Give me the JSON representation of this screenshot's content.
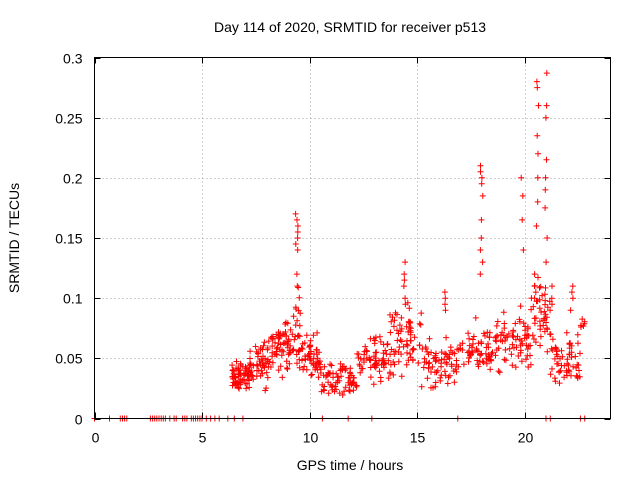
{
  "chart_data": {
    "type": "scatter",
    "title": "Day 114 of 2020, SRMTID for receiver p513",
    "xlabel": "GPS time / hours",
    "ylabel": "SRMTID / TECUs",
    "xlim": [
      0,
      24
    ],
    "ylim": [
      0,
      0.3
    ],
    "xticks": [
      0,
      5,
      10,
      15,
      20
    ],
    "yticks": [
      0,
      0.05,
      0.1,
      0.15,
      0.2,
      0.25,
      0.3
    ],
    "xtick_labels": [
      "0",
      "5",
      "10",
      "15",
      "20"
    ],
    "ytick_labels": [
      "0",
      "0.05",
      "0.1",
      "0.15",
      "0.2",
      "0.25",
      "0.3"
    ],
    "grid": true,
    "marker": "+",
    "series_color": "#ff0000",
    "zero_points_x": [
      0.0,
      0.7,
      1.2,
      1.3,
      1.4,
      1.5,
      2.6,
      2.7,
      2.8,
      2.9,
      3.0,
      3.1,
      3.2,
      3.3,
      3.5,
      3.7,
      3.8,
      4.1,
      4.2,
      4.3,
      4.5,
      4.6,
      4.7,
      4.8,
      4.9,
      5.0,
      5.2,
      5.4,
      5.6,
      5.8,
      6.2,
      6.5,
      6.9,
      10.6,
      11.8,
      12.9,
      16.9,
      21.0,
      21.2,
      22.6,
      22.8
    ],
    "segments": [
      {
        "x0": 6.4,
        "x1": 7.2,
        "base": 0.035,
        "spread": 0.012,
        "n": 60
      },
      {
        "x0": 7.2,
        "x1": 8.2,
        "base": 0.045,
        "spread": 0.018,
        "n": 55
      },
      {
        "x0": 8.2,
        "x1": 9.2,
        "base": 0.06,
        "spread": 0.025,
        "n": 60
      },
      {
        "x0": 9.2,
        "x1": 9.6,
        "base": 0.075,
        "spread": 0.04,
        "n": 25
      },
      {
        "x0": 9.6,
        "x1": 10.5,
        "base": 0.05,
        "spread": 0.022,
        "n": 50
      },
      {
        "x0": 10.5,
        "x1": 12.2,
        "base": 0.032,
        "spread": 0.015,
        "n": 70
      },
      {
        "x0": 12.2,
        "x1": 13.7,
        "base": 0.05,
        "spread": 0.02,
        "n": 65
      },
      {
        "x0": 13.7,
        "x1": 15.2,
        "base": 0.065,
        "spread": 0.028,
        "n": 70
      },
      {
        "x0": 15.2,
        "x1": 17.0,
        "base": 0.045,
        "spread": 0.02,
        "n": 70
      },
      {
        "x0": 17.0,
        "x1": 18.8,
        "base": 0.058,
        "spread": 0.025,
        "n": 70
      },
      {
        "x0": 18.8,
        "x1": 20.3,
        "base": 0.065,
        "spread": 0.025,
        "n": 60
      },
      {
        "x0": 20.3,
        "x1": 21.2,
        "base": 0.085,
        "spread": 0.03,
        "n": 45
      },
      {
        "x0": 21.2,
        "x1": 22.6,
        "base": 0.05,
        "spread": 0.025,
        "n": 60
      },
      {
        "x0": 22.6,
        "x1": 22.8,
        "base": 0.08,
        "spread": 0.01,
        "n": 6
      }
    ],
    "spikes": [
      {
        "x": 9.4,
        "y": [
          0.17,
          0.165,
          0.16,
          0.155,
          0.15,
          0.145,
          0.14,
          0.12,
          0.11
        ]
      },
      {
        "x": 14.4,
        "y": [
          0.13,
          0.12,
          0.115,
          0.11,
          0.1,
          0.095
        ]
      },
      {
        "x": 16.3,
        "y": [
          0.105,
          0.1,
          0.095,
          0.09
        ]
      },
      {
        "x": 18.0,
        "y": [
          0.21,
          0.205,
          0.2,
          0.195,
          0.185,
          0.165,
          0.15,
          0.14,
          0.13,
          0.12
        ]
      },
      {
        "x": 19.9,
        "y": [
          0.2,
          0.185,
          0.165,
          0.14
        ]
      },
      {
        "x": 20.6,
        "y": [
          0.28,
          0.275,
          0.26,
          0.235,
          0.22,
          0.2,
          0.18,
          0.16
        ]
      },
      {
        "x": 21.0,
        "y": [
          0.287,
          0.26,
          0.25,
          0.215,
          0.2,
          0.19,
          0.175,
          0.15,
          0.13
        ]
      },
      {
        "x": 20.5,
        "y": [
          0.12,
          0.11,
          0.105,
          0.1
        ]
      },
      {
        "x": 21.3,
        "y": [
          0.11,
          0.1,
          0.095
        ]
      },
      {
        "x": 22.2,
        "y": [
          0.11,
          0.105,
          0.1,
          0.09
        ]
      }
    ]
  }
}
